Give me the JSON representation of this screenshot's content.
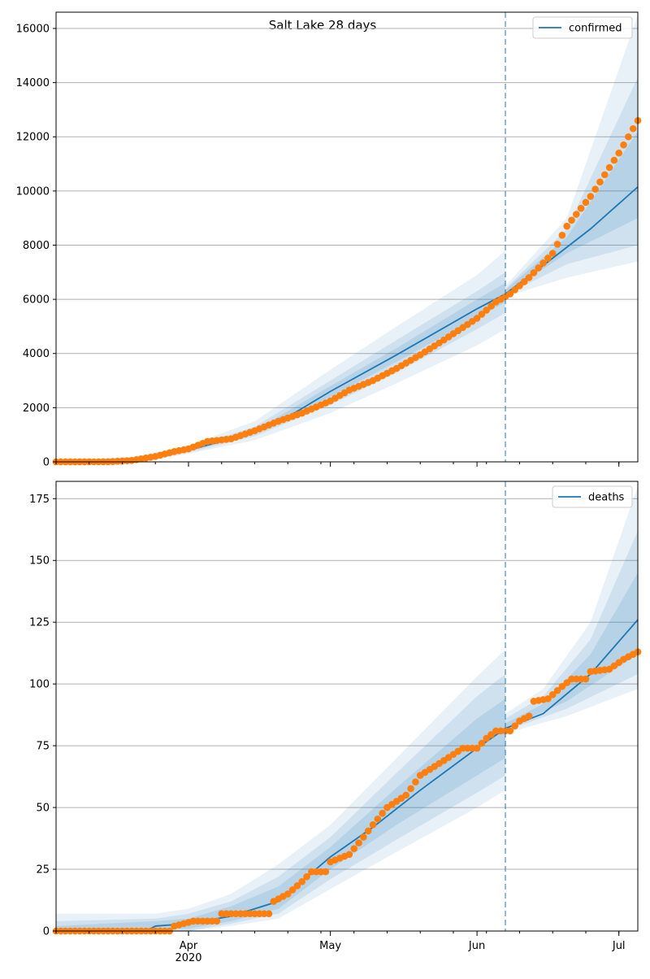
{
  "figure": {
    "title": "Salt Lake 28 days",
    "forecast_start": "2020-06-07",
    "forecast_line_color": "#1f77b4",
    "x_tick_labels": [
      {
        "date": "2020-04-01",
        "label": "Apr",
        "sublabel": "2020"
      },
      {
        "date": "2020-05-01",
        "label": "May",
        "sublabel": ""
      },
      {
        "date": "2020-06-01",
        "label": "Jun",
        "sublabel": ""
      },
      {
        "date": "2020-07-01",
        "label": "Jul",
        "sublabel": ""
      }
    ],
    "x_range": [
      "2020-03-04",
      "2020-07-05"
    ]
  },
  "chart_data": [
    {
      "type": "line",
      "legend": {
        "label": "confirmed",
        "placement": "top-right"
      },
      "grid": "horizontal",
      "ylim": [
        0,
        16600
      ],
      "yticks": [
        0,
        2000,
        4000,
        6000,
        8000,
        10000,
        12000,
        14000,
        16000
      ],
      "colors": {
        "model": "#1f77b4",
        "observed": "#ff7f0e",
        "band": "#1f77b4"
      },
      "model_series": {
        "name": "confirmed",
        "points": [
          [
            "2020-03-04",
            0
          ],
          [
            "2020-03-20",
            60
          ],
          [
            "2020-03-25",
            180
          ],
          [
            "2020-04-01",
            430
          ],
          [
            "2020-04-10",
            850
          ],
          [
            "2020-04-20",
            1450
          ],
          [
            "2020-05-01",
            2600
          ],
          [
            "2020-05-15",
            3950
          ],
          [
            "2020-06-01",
            5650
          ],
          [
            "2020-06-07",
            6200
          ],
          [
            "2020-06-15",
            7250
          ],
          [
            "2020-06-25",
            8600
          ],
          [
            "2020-07-05",
            10150
          ]
        ]
      },
      "bands": [
        {
          "level": "outer",
          "opacity": 0.1,
          "upper": [
            [
              "2020-03-04",
              0
            ],
            [
              "2020-03-25",
              250
            ],
            [
              "2020-04-01",
              600
            ],
            [
              "2020-04-15",
              1500
            ],
            [
              "2020-05-01",
              3400
            ],
            [
              "2020-05-15",
              5000
            ],
            [
              "2020-06-01",
              6900
            ],
            [
              "2020-06-07",
              7800
            ],
            [
              "2020-06-07",
              6500
            ],
            [
              "2020-06-20",
              9000
            ],
            [
              "2020-07-05",
              16500
            ]
          ],
          "lower": [
            [
              "2020-03-04",
              0
            ],
            [
              "2020-03-25",
              100
            ],
            [
              "2020-04-01",
              300
            ],
            [
              "2020-04-15",
              800
            ],
            [
              "2020-05-01",
              1800
            ],
            [
              "2020-05-15",
              2900
            ],
            [
              "2020-06-01",
              4300
            ],
            [
              "2020-06-07",
              4900
            ],
            [
              "2020-06-07",
              6100
            ],
            [
              "2020-06-20",
              6800
            ],
            [
              "2020-07-05",
              7400
            ]
          ]
        },
        {
          "level": "middle",
          "opacity": 0.12,
          "upper": [
            [
              "2020-03-04",
              0
            ],
            [
              "2020-03-25",
              220
            ],
            [
              "2020-04-01",
              520
            ],
            [
              "2020-04-15",
              1300
            ],
            [
              "2020-05-01",
              3000
            ],
            [
              "2020-05-15",
              4500
            ],
            [
              "2020-06-01",
              6300
            ],
            [
              "2020-06-07",
              7000
            ],
            [
              "2020-06-07",
              6400
            ],
            [
              "2020-06-20",
              8600
            ],
            [
              "2020-07-05",
              14200
            ]
          ],
          "lower": [
            [
              "2020-03-04",
              0
            ],
            [
              "2020-03-25",
              130
            ],
            [
              "2020-04-01",
              340
            ],
            [
              "2020-04-15",
              950
            ],
            [
              "2020-05-01",
              2100
            ],
            [
              "2020-05-15",
              3300
            ],
            [
              "2020-06-01",
              4900
            ],
            [
              "2020-06-07",
              5500
            ],
            [
              "2020-06-07",
              6150
            ],
            [
              "2020-06-20",
              7300
            ],
            [
              "2020-07-05",
              8000
            ]
          ]
        },
        {
          "level": "inner",
          "opacity": 0.14,
          "upper": [
            [
              "2020-03-04",
              0
            ],
            [
              "2020-03-25",
              200
            ],
            [
              "2020-04-01",
              470
            ],
            [
              "2020-04-15",
              1150
            ],
            [
              "2020-05-01",
              2800
            ],
            [
              "2020-05-15",
              4200
            ],
            [
              "2020-06-01",
              6000
            ],
            [
              "2020-06-07",
              6600
            ],
            [
              "2020-06-07",
              6350
            ],
            [
              "2020-06-20",
              8300
            ],
            [
              "2020-07-05",
              12200
            ]
          ],
          "lower": [
            [
              "2020-03-04",
              0
            ],
            [
              "2020-03-25",
              160
            ],
            [
              "2020-04-01",
              390
            ],
            [
              "2020-04-15",
              1050
            ],
            [
              "2020-05-01",
              2400
            ],
            [
              "2020-05-15",
              3700
            ],
            [
              "2020-06-01",
              5300
            ],
            [
              "2020-06-07",
              5900
            ],
            [
              "2020-06-07",
              6200
            ],
            [
              "2020-06-20",
              7700
            ],
            [
              "2020-07-05",
              9000
            ]
          ]
        }
      ],
      "observed": [
        [
          "2020-03-04",
          0
        ],
        [
          "2020-03-15",
          5
        ],
        [
          "2020-03-20",
          50
        ],
        [
          "2020-03-25",
          200
        ],
        [
          "2020-03-29",
          380
        ],
        [
          "2020-04-01",
          480
        ],
        [
          "2020-04-05",
          750
        ],
        [
          "2020-04-10",
          850
        ],
        [
          "2020-04-15",
          1150
        ],
        [
          "2020-04-20",
          1500
        ],
        [
          "2020-04-25",
          1800
        ],
        [
          "2020-05-01",
          2250
        ],
        [
          "2020-05-05",
          2650
        ],
        [
          "2020-05-10",
          3000
        ],
        [
          "2020-05-15",
          3450
        ],
        [
          "2020-05-20",
          3950
        ],
        [
          "2020-05-25",
          4500
        ],
        [
          "2020-06-01",
          5300
        ],
        [
          "2020-06-05",
          5900
        ],
        [
          "2020-06-08",
          6200
        ],
        [
          "2020-06-12",
          6800
        ],
        [
          "2020-06-17",
          7700
        ],
        [
          "2020-06-20",
          8700
        ],
        [
          "2020-06-25",
          9800
        ],
        [
          "2020-07-01",
          11400
        ],
        [
          "2020-07-05",
          12600
        ]
      ]
    },
    {
      "type": "line",
      "legend": {
        "label": "deaths",
        "placement": "top-right"
      },
      "grid": "horizontal",
      "ylim": [
        0,
        182
      ],
      "yticks": [
        0,
        25,
        50,
        75,
        100,
        125,
        150,
        175
      ],
      "colors": {
        "model": "#1f77b4",
        "observed": "#ff7f0e",
        "band": "#1f77b4"
      },
      "model_series": {
        "name": "deaths",
        "points": [
          [
            "2020-03-04",
            0
          ],
          [
            "2020-03-23",
            0
          ],
          [
            "2020-03-25",
            2
          ],
          [
            "2020-04-01",
            3
          ],
          [
            "2020-04-10",
            6
          ],
          [
            "2020-04-20",
            12
          ],
          [
            "2020-05-01",
            30
          ],
          [
            "2020-05-10",
            42
          ],
          [
            "2020-05-20",
            57
          ],
          [
            "2020-06-01",
            74
          ],
          [
            "2020-06-07",
            82
          ],
          [
            "2020-06-15",
            88
          ],
          [
            "2020-06-25",
            104
          ],
          [
            "2020-07-05",
            126
          ]
        ]
      },
      "bands": [
        {
          "level": "outer",
          "opacity": 0.1,
          "upper": [
            [
              "2020-03-04",
              7
            ],
            [
              "2020-03-25",
              7
            ],
            [
              "2020-04-01",
              9
            ],
            [
              "2020-04-10",
              15
            ],
            [
              "2020-04-20",
              27
            ],
            [
              "2020-05-01",
              43
            ],
            [
              "2020-05-15",
              70
            ],
            [
              "2020-06-01",
              103
            ],
            [
              "2020-06-07",
              114
            ],
            [
              "2020-06-07",
              88
            ],
            [
              "2020-06-15",
              98
            ],
            [
              "2020-06-25",
              125
            ],
            [
              "2020-07-05",
              180
            ]
          ],
          "lower": [
            [
              "2020-03-04",
              0
            ],
            [
              "2020-04-01",
              0
            ],
            [
              "2020-04-10",
              2
            ],
            [
              "2020-04-20",
              5
            ],
            [
              "2020-05-01",
              17
            ],
            [
              "2020-05-15",
              32
            ],
            [
              "2020-06-01",
              50
            ],
            [
              "2020-06-07",
              57
            ],
            [
              "2020-06-07",
              80
            ],
            [
              "2020-06-20",
              87
            ],
            [
              "2020-07-05",
              98
            ]
          ]
        },
        {
          "level": "middle",
          "opacity": 0.12,
          "upper": [
            [
              "2020-03-04",
              4
            ],
            [
              "2020-03-25",
              5
            ],
            [
              "2020-04-01",
              7
            ],
            [
              "2020-04-10",
              12
            ],
            [
              "2020-04-20",
              22
            ],
            [
              "2020-05-01",
              38
            ],
            [
              "2020-05-15",
              64
            ],
            [
              "2020-06-01",
              95
            ],
            [
              "2020-06-07",
              104
            ],
            [
              "2020-06-07",
              86
            ],
            [
              "2020-06-15",
              95
            ],
            [
              "2020-06-25",
              118
            ],
            [
              "2020-07-05",
              162
            ]
          ],
          "lower": [
            [
              "2020-03-04",
              0
            ],
            [
              "2020-04-01",
              0
            ],
            [
              "2020-04-10",
              3
            ],
            [
              "2020-04-20",
              7
            ],
            [
              "2020-05-01",
              21
            ],
            [
              "2020-05-15",
              37
            ],
            [
              "2020-06-01",
              56
            ],
            [
              "2020-06-07",
              63
            ],
            [
              "2020-06-07",
              81
            ],
            [
              "2020-06-20",
              90
            ],
            [
              "2020-07-05",
              104
            ]
          ]
        },
        {
          "level": "inner",
          "opacity": 0.14,
          "upper": [
            [
              "2020-03-04",
              2
            ],
            [
              "2020-03-25",
              4
            ],
            [
              "2020-04-01",
              5
            ],
            [
              "2020-04-10",
              10
            ],
            [
              "2020-04-20",
              18
            ],
            [
              "2020-05-01",
              34
            ],
            [
              "2020-05-15",
              58
            ],
            [
              "2020-06-01",
              86
            ],
            [
              "2020-06-07",
              94
            ],
            [
              "2020-06-07",
              84
            ],
            [
              "2020-06-15",
              92
            ],
            [
              "2020-06-25",
              112
            ],
            [
              "2020-07-05",
              145
            ]
          ],
          "lower": [
            [
              "2020-03-04",
              0
            ],
            [
              "2020-04-01",
              1
            ],
            [
              "2020-04-10",
              4
            ],
            [
              "2020-04-20",
              9
            ],
            [
              "2020-05-01",
              25
            ],
            [
              "2020-05-15",
              43
            ],
            [
              "2020-06-01",
              63
            ],
            [
              "2020-06-07",
              70
            ],
            [
              "2020-06-07",
              82
            ],
            [
              "2020-06-20",
              93
            ],
            [
              "2020-07-05",
              112
            ]
          ]
        }
      ],
      "observed": [
        [
          "2020-03-04",
          0
        ],
        [
          "2020-03-28",
          0
        ],
        [
          "2020-03-29",
          2
        ],
        [
          "2020-04-02",
          4
        ],
        [
          "2020-04-07",
          4
        ],
        [
          "2020-04-08",
          7
        ],
        [
          "2020-04-18",
          7
        ],
        [
          "2020-04-19",
          12
        ],
        [
          "2020-04-22",
          15
        ],
        [
          "2020-04-25",
          20
        ],
        [
          "2020-04-27",
          24
        ],
        [
          "2020-04-30",
          24
        ],
        [
          "2020-05-01",
          28
        ],
        [
          "2020-05-05",
          31
        ],
        [
          "2020-05-08",
          38
        ],
        [
          "2020-05-10",
          43
        ],
        [
          "2020-05-13",
          50
        ],
        [
          "2020-05-17",
          55
        ],
        [
          "2020-05-20",
          63
        ],
        [
          "2020-05-25",
          69
        ],
        [
          "2020-05-29",
          74
        ],
        [
          "2020-06-01",
          74
        ],
        [
          "2020-06-03",
          78
        ],
        [
          "2020-06-05",
          81
        ],
        [
          "2020-06-08",
          81
        ],
        [
          "2020-06-10",
          85
        ],
        [
          "2020-06-12",
          87
        ],
        [
          "2020-06-13",
          93
        ],
        [
          "2020-06-16",
          94
        ],
        [
          "2020-06-19",
          99
        ],
        [
          "2020-06-21",
          102
        ],
        [
          "2020-06-24",
          102
        ],
        [
          "2020-06-25",
          105
        ],
        [
          "2020-06-29",
          106
        ],
        [
          "2020-07-02",
          110
        ],
        [
          "2020-07-05",
          113
        ]
      ]
    }
  ]
}
